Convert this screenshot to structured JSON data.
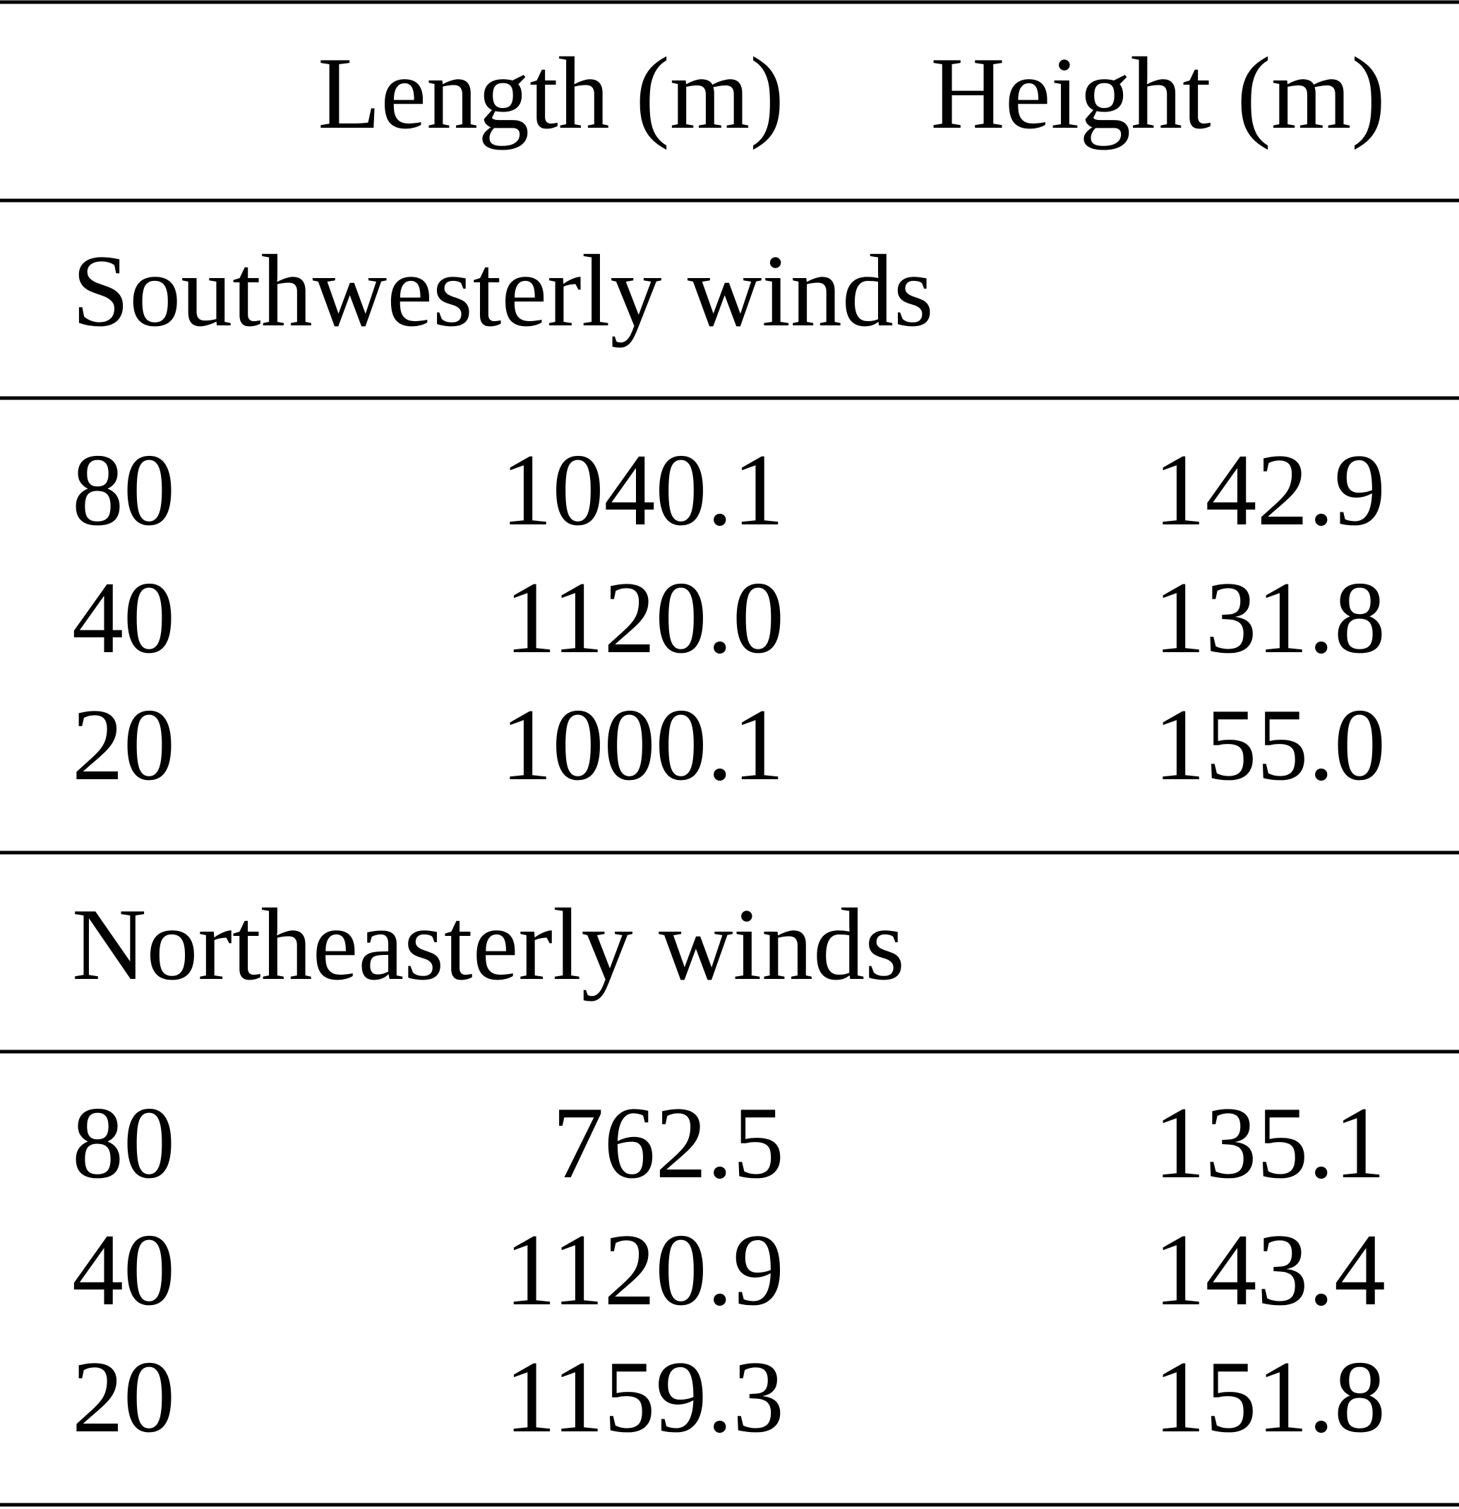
{
  "table": {
    "columns": [
      "Length (m)",
      "Height (m)"
    ],
    "sections": [
      {
        "title": "Southwesterly winds",
        "rows": [
          [
            "80",
            "1040.1",
            "142.9"
          ],
          [
            "40",
            "1120.0",
            "131.8"
          ],
          [
            "20",
            "1000.1",
            "155.0"
          ]
        ]
      },
      {
        "title": "Northeasterly winds",
        "rows": [
          [
            "80",
            "762.5",
            "135.1"
          ],
          [
            "40",
            "1120.9",
            "143.4"
          ],
          [
            "20",
            "1159.3",
            "151.8"
          ]
        ]
      }
    ]
  }
}
